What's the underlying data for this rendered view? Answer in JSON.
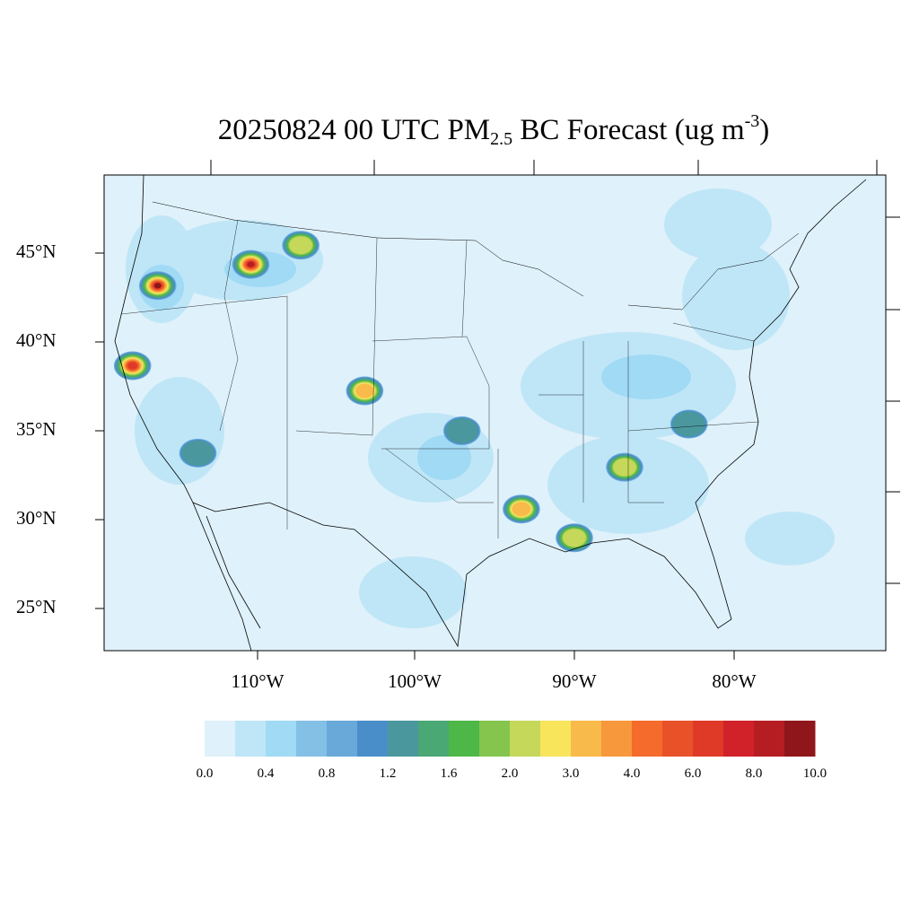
{
  "title": {
    "main": "20250824 00 UTC PM",
    "sub": "2.5",
    "middle": " BC Forecast (ug m",
    "sup": "-3",
    "end": ")"
  },
  "map": {
    "background_color": "#dff1fa",
    "lat_labels": [
      "45°N",
      "40°N",
      "35°N",
      "30°N",
      "25°N"
    ],
    "lon_labels": [
      "110°W",
      "100°W",
      "90°W",
      "80°W"
    ],
    "hotspots": [
      {
        "lon": -122.7,
        "lat": 43.6,
        "value": 10.0
      },
      {
        "lon": -115.7,
        "lat": 44.6,
        "value": 8.0
      },
      {
        "lon": -122.9,
        "lat": 39.1,
        "value": 6.0
      },
      {
        "lon": -105.3,
        "lat": 37.3,
        "value": 3.0
      },
      {
        "lon": -93.6,
        "lat": 30.6,
        "value": 3.0
      },
      {
        "lon": -112.0,
        "lat": 45.6,
        "value": 2.0
      },
      {
        "lon": -86.5,
        "lat": 33.0,
        "value": 2.0
      },
      {
        "lon": -90.0,
        "lat": 29.0,
        "value": 2.0
      },
      {
        "lon": -98.0,
        "lat": 35.0,
        "value": 1.2
      },
      {
        "lon": -81.8,
        "lat": 35.5,
        "value": 1.2
      },
      {
        "lon": -116.5,
        "lat": 34.0,
        "value": 1.2
      }
    ]
  },
  "colorbar": {
    "colors": [
      "#dff1fa",
      "#bfe6f7",
      "#a0daf5",
      "#84c0e6",
      "#68a9da",
      "#4a8ec9",
      "#4a989e",
      "#4aa875",
      "#4db848",
      "#85c54e",
      "#c5d85a",
      "#f8e55c",
      "#f8ba4a",
      "#f7983c",
      "#f46b2b",
      "#e95129",
      "#df3a27",
      "#d12129",
      "#b61d23",
      "#8f161a"
    ],
    "labels": [
      "0.0",
      "0.4",
      "0.8",
      "1.2",
      "1.6",
      "2.0",
      "3.0",
      "4.0",
      "6.0",
      "8.0",
      "10.0"
    ],
    "levels": [
      0.0,
      0.2,
      0.4,
      0.6,
      0.8,
      1.0,
      1.2,
      1.4,
      1.6,
      1.8,
      2.0,
      2.5,
      3.0,
      3.5,
      4.0,
      5.0,
      6.0,
      7.0,
      8.0,
      9.0,
      10.0
    ]
  }
}
